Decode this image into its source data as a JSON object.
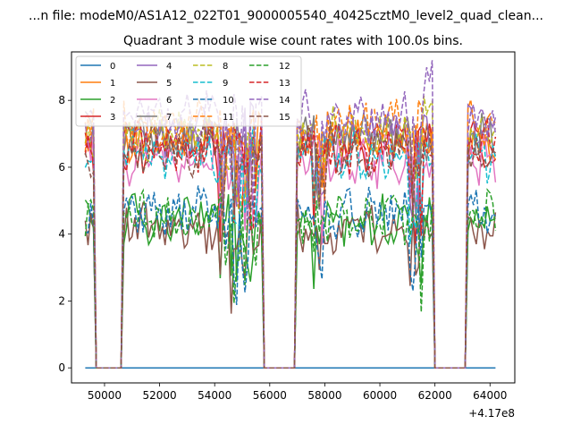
{
  "suptitle": "...n file: modeM0/AS1A12_022T01_9000005540_40425cztM0_level2_quad_clean...",
  "chart_data": {
    "type": "line",
    "title": "Quadrant 3 module wise count rates with 100.0s bins.",
    "xlabel": "",
    "ylabel": "",
    "x_offset_label": "+4.17e8",
    "xlim": [
      48800,
      64900
    ],
    "ylim": [
      -0.45,
      9.45
    ],
    "xticks": [
      50000,
      52000,
      54000,
      56000,
      58000,
      60000,
      62000,
      64000
    ],
    "xtick_labels": [
      "50000",
      "52000",
      "54000",
      "56000",
      "58000",
      "60000",
      "62000",
      "64000"
    ],
    "yticks": [
      0,
      2,
      4,
      6,
      8
    ],
    "ytick_labels": [
      "0",
      "2",
      "4",
      "6",
      "8"
    ],
    "grid": false,
    "legend": {
      "placement": "top-left",
      "columns": 4
    },
    "x_start": 49300,
    "x_step": 100,
    "series": [
      {
        "name": "0",
        "color": "#1f77b4",
        "dash": "solid",
        "values": []
      },
      {
        "name": "1",
        "color": "#ff7f0e",
        "dash": "solid",
        "values": []
      },
      {
        "name": "2",
        "color": "#2ca02c",
        "dash": "solid",
        "values": []
      },
      {
        "name": "3",
        "color": "#d62728",
        "dash": "solid",
        "values": []
      },
      {
        "name": "4",
        "color": "#9467bd",
        "dash": "solid",
        "values": []
      },
      {
        "name": "5",
        "color": "#8c564b",
        "dash": "solid",
        "values": []
      },
      {
        "name": "6",
        "color": "#e377c2",
        "dash": "solid",
        "values": []
      },
      {
        "name": "7",
        "color": "#7f7f7f",
        "dash": "solid",
        "values": []
      },
      {
        "name": "8",
        "color": "#bcbd22",
        "dash": "dashed",
        "values": []
      },
      {
        "name": "9",
        "color": "#17becf",
        "dash": "dashed",
        "values": []
      },
      {
        "name": "10",
        "color": "#1f77b4",
        "dash": "dashed",
        "values": []
      },
      {
        "name": "11",
        "color": "#ff7f0e",
        "dash": "dashed",
        "values": []
      },
      {
        "name": "12",
        "color": "#2ca02c",
        "dash": "dashed",
        "values": []
      },
      {
        "name": "13",
        "color": "#d62728",
        "dash": "dashed",
        "values": []
      },
      {
        "name": "14",
        "color": "#9467bd",
        "dash": "dashed",
        "values": []
      },
      {
        "name": "15",
        "color": "#8c564b",
        "dash": "dashed",
        "values": []
      }
    ]
  }
}
